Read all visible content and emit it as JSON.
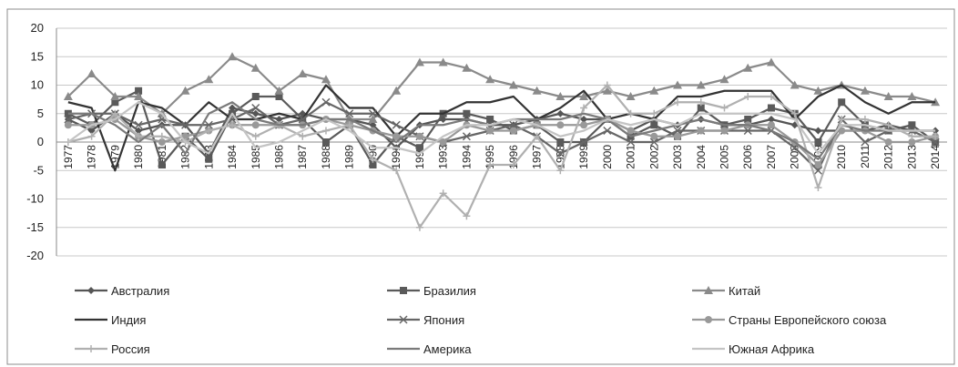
{
  "chart_data": {
    "type": "line",
    "title": "",
    "xlabel": "",
    "ylabel": "",
    "ylim": [
      -20,
      20
    ],
    "yticks": [
      -20,
      -15,
      -10,
      -5,
      0,
      5,
      10,
      15,
      20
    ],
    "ytick_labels": [
      "-20",
      "-15",
      "-10",
      "-5",
      "0",
      "5",
      "10",
      "15",
      "20"
    ],
    "grid": "horizontal",
    "legend_position": "bottom",
    "x": [
      "1977",
      "1978",
      "1979",
      "1980",
      "1981",
      "1982",
      "1983",
      "1984",
      "1985",
      "1986",
      "1987",
      "1988",
      "1989",
      "1990",
      "1991",
      "1992",
      "1993",
      "1994",
      "1995",
      "1996",
      "1997",
      "1998",
      "1999",
      "2000",
      "2001",
      "2002",
      "2003",
      "2004",
      "2005",
      "2006",
      "2007",
      "2008",
      "2009",
      "2010",
      "2011",
      "2012",
      "2013",
      "2014"
    ],
    "series": [
      {
        "name": "Австралия",
        "color": "#555555",
        "marker": "diamond",
        "values": [
          4,
          2,
          5,
          2,
          3,
          3,
          -2,
          6,
          5,
          4,
          5,
          4,
          4,
          3,
          -1,
          3,
          4,
          4,
          3,
          3,
          4,
          5,
          4,
          4,
          2,
          4,
          3,
          4,
          3,
          3,
          4,
          3,
          2,
          2,
          2,
          3,
          2,
          2
        ]
      },
      {
        "name": "Бразилия",
        "color": "#5a5a5a",
        "marker": "square",
        "values": [
          5,
          3,
          7,
          9,
          -4,
          1,
          -3,
          5,
          8,
          8,
          4,
          0,
          3,
          -4,
          1,
          -1,
          5,
          5,
          4,
          2,
          3,
          0,
          0,
          4,
          1,
          3,
          1,
          6,
          3,
          4,
          6,
          5,
          0,
          7,
          3,
          2,
          3,
          0
        ]
      },
      {
        "name": "Китай",
        "color": "#8a8a8a",
        "marker": "triangle",
        "values": [
          8,
          12,
          8,
          8,
          5,
          9,
          11,
          15,
          13,
          9,
          12,
          11,
          4,
          4,
          9,
          14,
          14,
          13,
          11,
          10,
          9,
          8,
          8,
          9,
          8,
          9,
          10,
          10,
          11,
          13,
          14,
          10,
          9,
          10,
          9,
          8,
          8,
          7
        ]
      },
      {
        "name": "Индия",
        "color": "#333333",
        "marker": "none",
        "values": [
          7,
          6,
          -5,
          7,
          6,
          3,
          7,
          4,
          4,
          5,
          4,
          10,
          6,
          6,
          1,
          5,
          5,
          7,
          7,
          8,
          4,
          6,
          9,
          4,
          5,
          4,
          8,
          8,
          9,
          9,
          9,
          4,
          8,
          10,
          7,
          5,
          7,
          7
        ]
      },
      {
        "name": "Япония",
        "color": "#666666",
        "marker": "x",
        "values": [
          4,
          5,
          5,
          3,
          4,
          3,
          3,
          4,
          6,
          3,
          4,
          7,
          5,
          5,
          3,
          1,
          0,
          1,
          2,
          3,
          1,
          -2,
          0,
          2,
          0,
          0,
          2,
          2,
          2,
          2,
          2,
          -1,
          -5,
          4,
          0,
          2,
          2,
          0
        ]
      },
      {
        "name": "Страны Европейского союза",
        "color": "#999999",
        "marker": "circle",
        "values": [
          3,
          3,
          4,
          1,
          0,
          1,
          2,
          3,
          3,
          3,
          3,
          4,
          3,
          2,
          1,
          1,
          0,
          3,
          2,
          2,
          3,
          3,
          3,
          4,
          2,
          1,
          1,
          2,
          2,
          3,
          3,
          0,
          -4,
          2,
          2,
          0,
          0,
          1
        ]
      },
      {
        "name": "Россия",
        "color": "#b0b0b0",
        "marker": "plus",
        "values": [
          0,
          1,
          5,
          1,
          1,
          0,
          2,
          3,
          1,
          3,
          1,
          2,
          3,
          -3,
          -5,
          -15,
          -9,
          -13,
          -4,
          -4,
          1,
          -5,
          6,
          10,
          5,
          5,
          7,
          7,
          6,
          8,
          8,
          5,
          -8,
          4,
          4,
          3,
          1,
          1
        ]
      },
      {
        "name": "Америка",
        "color": "#7a7a7a",
        "marker": "none",
        "values": [
          5,
          5,
          3,
          0,
          3,
          -2,
          5,
          7,
          4,
          3,
          3,
          4,
          4,
          2,
          0,
          3,
          3,
          4,
          3,
          4,
          4,
          4,
          5,
          4,
          1,
          2,
          3,
          4,
          3,
          3,
          2,
          0,
          -3,
          3,
          2,
          2,
          2,
          2
        ]
      },
      {
        "name": "Южная Африка",
        "color": "#c4c4c4",
        "marker": "none",
        "values": [
          0,
          3,
          4,
          7,
          5,
          0,
          -2,
          5,
          -1,
          0,
          2,
          4,
          2,
          -1,
          -1,
          -2,
          1,
          3,
          3,
          4,
          3,
          1,
          2,
          4,
          3,
          4,
          3,
          5,
          5,
          5,
          5,
          4,
          -2,
          3,
          3,
          2,
          2,
          2
        ]
      }
    ]
  }
}
